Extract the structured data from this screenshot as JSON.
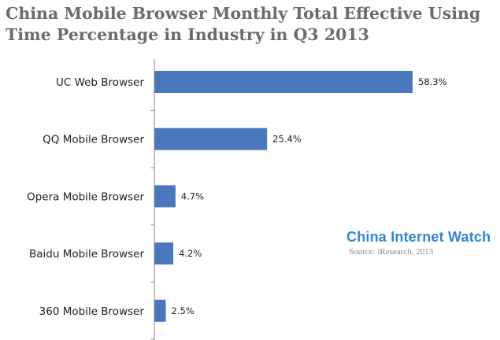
{
  "chart_data": {
    "type": "bar",
    "orientation": "horizontal",
    "title": "China Mobile Browser Monthly Total Effective Using Time Percentage in Industry in Q3 2013",
    "categories": [
      "UC Web Browser",
      "QQ Mobile Browser",
      "Opera Mobile Browser",
      "Baidu Mobile Browser",
      "360 Mobile Browser"
    ],
    "values": [
      58.3,
      25.4,
      4.7,
      4.2,
      2.5
    ],
    "value_labels": [
      "58.3%",
      "25.4%",
      "4.7%",
      "4.2%",
      "2.5%"
    ],
    "unit": "%",
    "bar_color": "#4a78be",
    "grid": false
  },
  "watermark": {
    "brand": "China Internet Watch",
    "source": "Source: iResearch, 2013"
  }
}
